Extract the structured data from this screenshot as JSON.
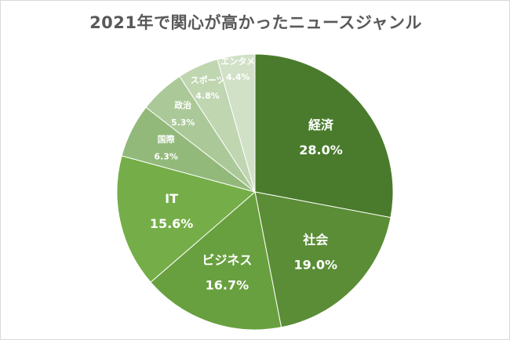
{
  "chart_data": {
    "type": "pie",
    "title": "2021年で関心が高かったニュースジャンル",
    "slices": [
      {
        "label": "経済",
        "value": 28.0,
        "value_text": "28.0%",
        "color": "#4a7b2c"
      },
      {
        "label": "社会",
        "value": 19.0,
        "value_text": "19.0%",
        "color": "#5a8d36"
      },
      {
        "label": "ビジネス",
        "value": 16.7,
        "value_text": "16.7%",
        "color": "#68a03f"
      },
      {
        "label": "IT",
        "value": 15.6,
        "value_text": "15.6%",
        "color": "#75ae48"
      },
      {
        "label": "国際",
        "value": 6.3,
        "value_text": "6.3%",
        "color": "#92b97a"
      },
      {
        "label": "政治",
        "value": 5.3,
        "value_text": "5.3%",
        "color": "#abc998"
      },
      {
        "label": "スポーツ",
        "value": 4.8,
        "value_text": "4.8%",
        "color": "#bfd6b1"
      },
      {
        "label": "エンタメ",
        "value": 4.4,
        "value_text": "4.4%",
        "color": "#d1e1c7"
      }
    ]
  }
}
